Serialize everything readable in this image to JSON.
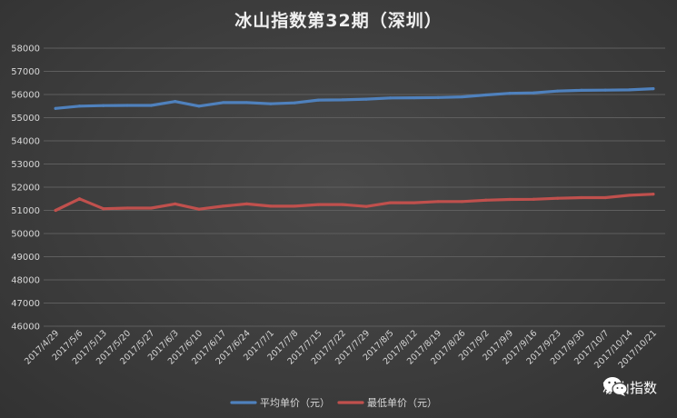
{
  "chart_data": {
    "type": "line",
    "title": "冰山指数第32期（深圳）",
    "xlabel": "",
    "ylabel": "",
    "ylim": [
      46000,
      58000
    ],
    "y_ticks": [
      46000,
      47000,
      48000,
      49000,
      50000,
      51000,
      52000,
      53000,
      54000,
      55000,
      56000,
      57000,
      58000
    ],
    "grid": true,
    "legend_position": "bottom",
    "categories": [
      "2017/4/29",
      "2017/5/6",
      "2017/5/13",
      "2017/5/20",
      "2017/5/27",
      "2017/6/3",
      "2017/6/10",
      "2017/6/17",
      "2017/6/24",
      "2017/7/1",
      "2017/7/8",
      "2017/7/15",
      "2017/7/22",
      "2017/7/29",
      "2017/8/5",
      "2017/8/12",
      "2017/8/19",
      "2017/8/26",
      "2017/9/2",
      "2017/9/9",
      "2017/9/16",
      "2017/9/23",
      "2017/9/30",
      "2017/10/7",
      "2017/10/14",
      "2017/10/21"
    ],
    "series": [
      {
        "name": "平均单价（元）",
        "color": "#4f81bd",
        "values": [
          55400,
          55500,
          55520,
          55530,
          55530,
          55700,
          55500,
          55650,
          55650,
          55600,
          55640,
          55760,
          55770,
          55800,
          55850,
          55860,
          55870,
          55900,
          55980,
          56050,
          56070,
          56150,
          56180,
          56190,
          56200,
          56250
        ]
      },
      {
        "name": "最低单价（元）",
        "color": "#c0504d",
        "values": [
          51000,
          51500,
          51070,
          51100,
          51100,
          51280,
          51050,
          51180,
          51280,
          51180,
          51180,
          51250,
          51250,
          51170,
          51330,
          51330,
          51380,
          51380,
          51440,
          51470,
          51480,
          51520,
          51550,
          51550,
          51650,
          51700
        ]
      }
    ]
  },
  "watermark": {
    "text": "冰山指数",
    "icon": "wechat-icon"
  }
}
